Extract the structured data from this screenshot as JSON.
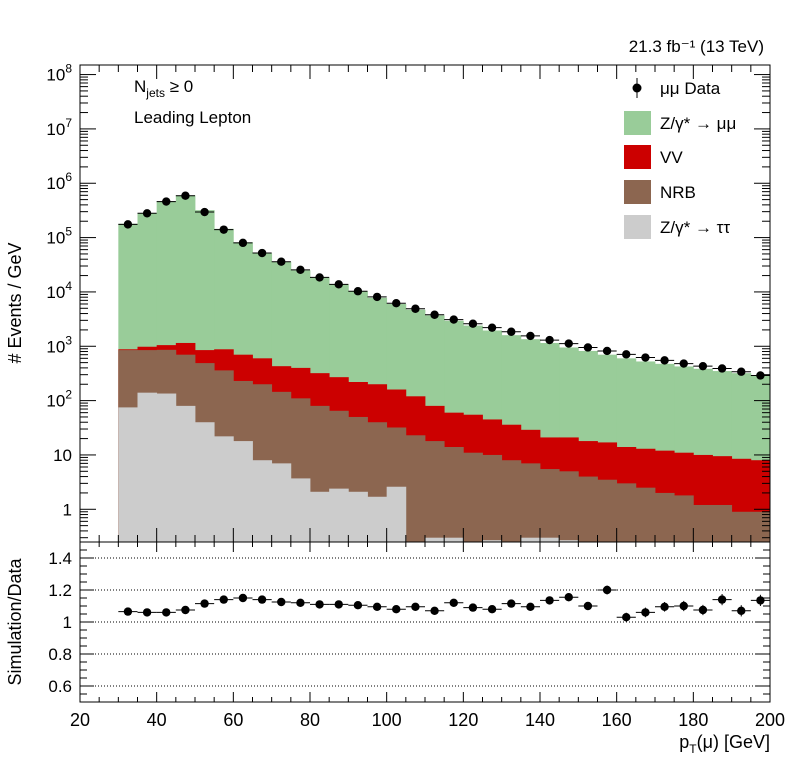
{
  "chart_data": {
    "type": "bar",
    "lumi_label": "21.3 fb⁻¹ (13 TeV)",
    "annotations": [
      "Nⱼₑₜₛ ≥ 0",
      "Leading Lepton"
    ],
    "annotation_njets": {
      "main": "N",
      "sub": "jets",
      "rest": " ≥ 0"
    },
    "annotation_region": "Leading Lepton",
    "top": {
      "ylabel": "# Events / GeV",
      "yscale": "log",
      "ylim": [
        0.25,
        150000000
      ],
      "ytick_labels": [
        {
          "v": 1,
          "label": "1"
        },
        {
          "v": 10,
          "label": "10"
        },
        {
          "v": 100,
          "base": "10",
          "exp": "2"
        },
        {
          "v": 1000,
          "base": "10",
          "exp": "3"
        },
        {
          "v": 10000,
          "base": "10",
          "exp": "4"
        },
        {
          "v": 100000,
          "base": "10",
          "exp": "5"
        },
        {
          "v": 1000000,
          "base": "10",
          "exp": "6"
        },
        {
          "v": 10000000,
          "base": "10",
          "exp": "7"
        },
        {
          "v": 100000000,
          "base": "10",
          "exp": "8"
        }
      ],
      "bin_edges_start": 30,
      "bin_width": 5,
      "x_centers": [
        32.5,
        37.5,
        42.5,
        47.5,
        52.5,
        57.5,
        62.5,
        67.5,
        72.5,
        77.5,
        82.5,
        87.5,
        92.5,
        97.5,
        102.5,
        107.5,
        112.5,
        117.5,
        122.5,
        127.5,
        132.5,
        137.5,
        142.5,
        147.5,
        152.5,
        157.5,
        162.5,
        167.5,
        172.5,
        177.5,
        182.5,
        187.5,
        192.5,
        197.5
      ],
      "stack_cumulative": [
        {
          "name": "Z/γ* → ττ",
          "color": "#cccccc",
          "values": [
            75,
            140,
            135,
            80,
            40,
            22,
            18,
            8,
            7,
            3.7,
            2.1,
            2.4,
            2.1,
            1.7,
            2.6,
            0,
            0.3,
            0.3,
            0,
            0.27,
            0,
            0.3,
            0.3,
            0.27,
            0.2,
            0,
            0.2,
            0,
            0,
            0,
            0,
            0,
            0,
            0
          ]
        },
        {
          "name": "NRB",
          "color": "#8c6650",
          "values": [
            850,
            850,
            860,
            700,
            490,
            360,
            230,
            200,
            145,
            110,
            80,
            65,
            50,
            40,
            32,
            23,
            18,
            14,
            11,
            10,
            8,
            7,
            5.5,
            5.0,
            4.0,
            3.5,
            3.0,
            2.5,
            2.0,
            1.8,
            1.2,
            1.2,
            0.9,
            0.9
          ]
        },
        {
          "name": "VV",
          "color": "#cc0000",
          "values": [
            880,
            980,
            1050,
            1150,
            850,
            880,
            700,
            600,
            430,
            400,
            320,
            270,
            220,
            200,
            160,
            120,
            80,
            60,
            55,
            45,
            36,
            29,
            21,
            21,
            18,
            17,
            14,
            13,
            12,
            11,
            10,
            9.5,
            8.5,
            8.0
          ]
        },
        {
          "name": "Z/γ* → μμ",
          "color": "#99cc99",
          "values": [
            180000,
            280000,
            470000,
            600000,
            320000,
            145000,
            82000,
            51000,
            36000,
            25000,
            18500,
            13800,
            10200,
            7800,
            6000,
            4700,
            3700,
            2950,
            2400,
            1950,
            1600,
            1350,
            1150,
            950,
            820,
            700,
            600,
            525,
            475,
            425,
            385,
            350,
            320,
            290
          ]
        }
      ],
      "data": {
        "name": "μμ Data",
        "x": [
          32.5,
          37.5,
          42.5,
          47.5,
          52.5,
          57.5,
          62.5,
          67.5,
          72.5,
          77.5,
          82.5,
          87.5,
          92.5,
          97.5,
          102.5,
          107.5,
          112.5,
          117.5,
          122.5,
          127.5,
          132.5,
          137.5,
          142.5,
          147.5,
          152.5,
          157.5,
          162.5,
          167.5,
          172.5,
          177.5,
          182.5,
          187.5,
          192.5,
          197.5
        ],
        "y": [
          175000,
          280000,
          460000,
          590000,
          295000,
          140000,
          80000,
          52000,
          36000,
          25500,
          18500,
          13800,
          10300,
          8100,
          6200,
          4900,
          3800,
          3100,
          2600,
          2200,
          1850,
          1550,
          1300,
          1120,
          950,
          820,
          710,
          620,
          550,
          480,
          430,
          390,
          340,
          290
        ]
      },
      "legend": [
        "μμ Data",
        "Z/γ* → μμ",
        "VV",
        "NRB",
        "Z/γ* → ττ"
      ],
      "legend_placement": "top-right"
    },
    "ratio": {
      "ylabel": "Simulation/Data",
      "ylim": [
        0.5,
        1.5
      ],
      "yticks": [
        "0.6",
        "0.8",
        "1",
        "1.2",
        "1.4"
      ],
      "ytick_values": [
        0.6,
        0.8,
        1.0,
        1.2,
        1.4
      ],
      "grid": "horizontal dotted",
      "x": [
        32.5,
        37.5,
        42.5,
        47.5,
        52.5,
        57.5,
        62.5,
        67.5,
        72.5,
        77.5,
        82.5,
        87.5,
        92.5,
        97.5,
        102.5,
        107.5,
        112.5,
        117.5,
        122.5,
        127.5,
        132.5,
        137.5,
        142.5,
        147.5,
        152.5,
        157.5,
        162.5,
        167.5,
        172.5,
        177.5,
        182.5,
        187.5,
        192.5,
        197.5
      ],
      "values": [
        1.065,
        1.06,
        1.06,
        1.075,
        1.115,
        1.14,
        1.15,
        1.14,
        1.125,
        1.12,
        1.11,
        1.11,
        1.105,
        1.095,
        1.08,
        1.095,
        1.07,
        1.12,
        1.09,
        1.08,
        1.115,
        1.095,
        1.135,
        1.155,
        1.1,
        1.2,
        1.03,
        1.06,
        1.095,
        1.1,
        1.075,
        1.14,
        1.07,
        1.135
      ],
      "errors": [
        0.008,
        0.008,
        0.008,
        0.008,
        0.008,
        0.008,
        0.008,
        0.008,
        0.01,
        0.01,
        0.01,
        0.012,
        0.012,
        0.014,
        0.014,
        0.016,
        0.016,
        0.018,
        0.018,
        0.02,
        0.02,
        0.022,
        0.022,
        0.025,
        0.025,
        0.028,
        0.028,
        0.03,
        0.03,
        0.032,
        0.032,
        0.035,
        0.035,
        0.035
      ]
    },
    "xlabel_main": "p",
    "xlabel_sub": "T",
    "xlabel_rest": "(μ) [GeV]",
    "xlim": [
      20,
      200
    ],
    "xticks": [
      "20",
      "40",
      "60",
      "80",
      "100",
      "120",
      "140",
      "160",
      "180",
      "200"
    ]
  }
}
